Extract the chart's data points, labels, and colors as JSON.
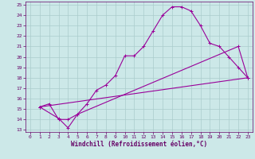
{
  "bg_color": "#cce8e8",
  "line_color": "#990099",
  "grid_color": "#aacccc",
  "xlabel": "Windchill (Refroidissement éolien,°C)",
  "xlabel_color": "#660066",
  "tick_color": "#660066",
  "xlim": [
    -0.5,
    23.5
  ],
  "ylim": [
    12.8,
    25.3
  ],
  "yticks": [
    13,
    14,
    15,
    16,
    17,
    18,
    19,
    20,
    21,
    22,
    23,
    24,
    25
  ],
  "xticks": [
    0,
    1,
    2,
    3,
    4,
    5,
    6,
    7,
    8,
    9,
    10,
    11,
    12,
    13,
    14,
    15,
    16,
    17,
    18,
    19,
    20,
    21,
    22,
    23
  ],
  "line1_x": [
    1,
    2,
    3,
    4,
    5,
    6,
    7,
    8,
    9,
    10,
    11,
    12,
    13,
    14,
    15,
    16,
    17,
    18,
    19,
    20,
    21,
    22,
    23
  ],
  "line1_y": [
    15.2,
    15.5,
    14.0,
    14.0,
    14.5,
    15.5,
    16.8,
    17.3,
    18.2,
    20.1,
    20.1,
    21.0,
    22.5,
    24.0,
    24.8,
    24.8,
    24.4,
    23.0,
    21.3,
    21.0,
    20.0,
    19.0,
    18.0
  ],
  "line2_x": [
    1,
    3,
    4,
    5,
    22,
    23
  ],
  "line2_y": [
    15.2,
    14.1,
    13.2,
    14.5,
    21.0,
    18.0
  ],
  "line3_x": [
    1,
    23
  ],
  "line3_y": [
    15.2,
    18.0
  ]
}
